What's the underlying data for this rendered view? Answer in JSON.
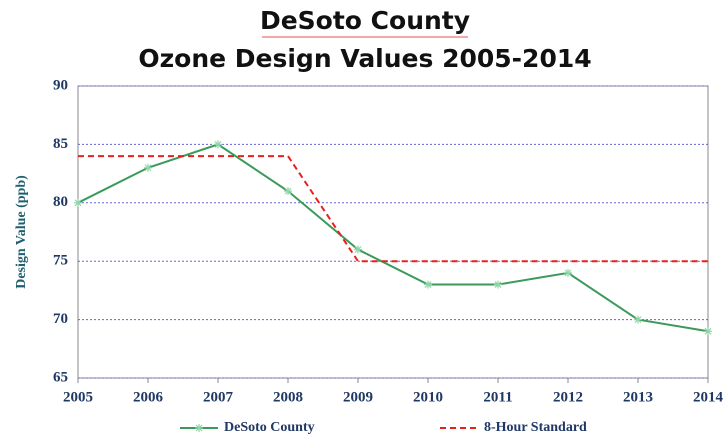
{
  "chart_data": {
    "type": "line",
    "title": [
      "DeSoto County",
      "Ozone Design Values 2005-2014"
    ],
    "y_label": "Design Value (ppb)",
    "x": [
      2005,
      2006,
      2007,
      2008,
      2009,
      2010,
      2011,
      2012,
      2013,
      2014
    ],
    "xlim": [
      2005,
      2014
    ],
    "xticks": [
      2005,
      2006,
      2007,
      2008,
      2009,
      2010,
      2011,
      2012,
      2013,
      2014
    ],
    "ylim": [
      65,
      90
    ],
    "yticks": [
      65,
      70,
      75,
      80,
      85,
      90
    ],
    "grid": true,
    "legend": "bottom",
    "series": [
      {
        "name": "DeSoto County",
        "color": "#3a9a5a",
        "values": [
          80,
          83,
          85,
          81,
          76,
          73,
          73,
          74,
          70,
          69
        ]
      },
      {
        "name": "8-Hour Standard",
        "color": "#e8201c",
        "dashed": true,
        "values": [
          84,
          84,
          84,
          84,
          75,
          75,
          75,
          75,
          75,
          75
        ]
      }
    ]
  }
}
